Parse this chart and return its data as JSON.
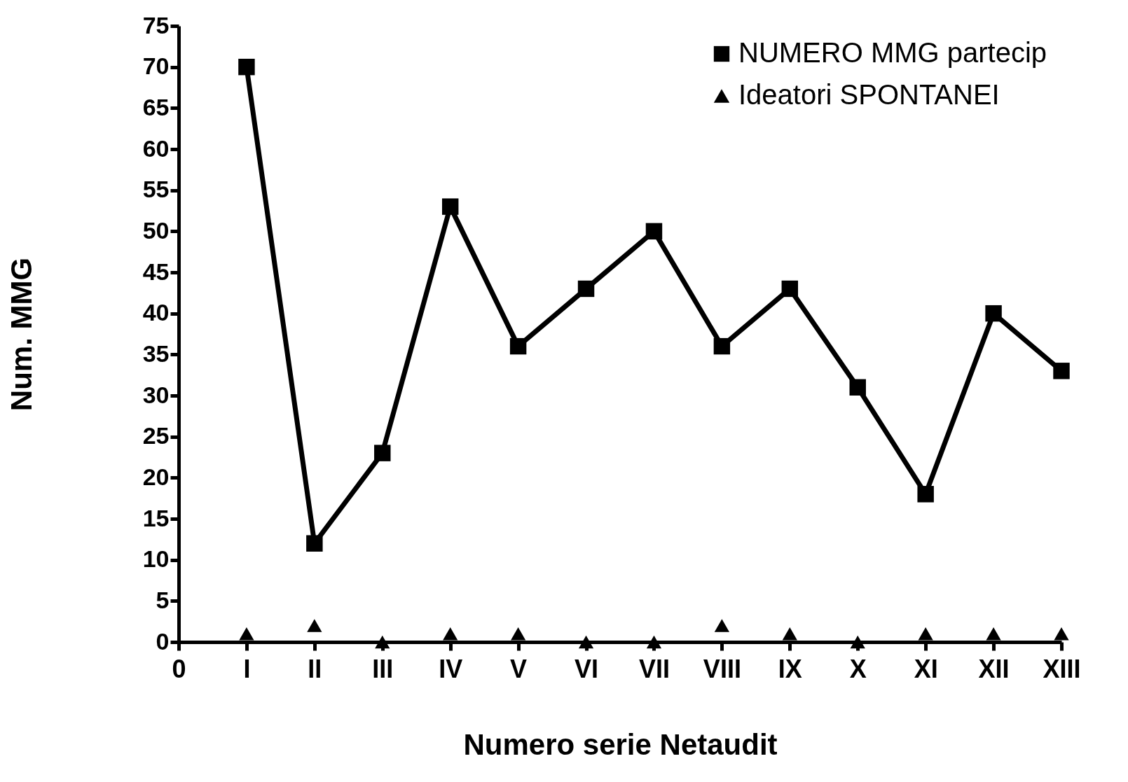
{
  "chart_data": {
    "type": "line",
    "xlabel": "Numero serie Netaudit",
    "ylabel": "Num.  MMG",
    "categories": [
      "0",
      "I",
      "II",
      "III",
      "IV",
      "V",
      "VI",
      "VII",
      "VIII",
      "IX",
      "X",
      "XI",
      "XII",
      "XIII"
    ],
    "series": [
      {
        "name": "NUMERO MMG partecip",
        "color": "#000000",
        "marker": "square",
        "values": [
          null,
          70,
          12,
          23,
          53,
          36,
          43,
          50,
          36,
          43,
          31,
          18,
          40,
          33
        ]
      },
      {
        "name": "Ideatori SPONTANEI",
        "type": "scatter",
        "color": "#000000",
        "marker": "triangle",
        "values": [
          null,
          1,
          2,
          0,
          1,
          1,
          0,
          0,
          2,
          1,
          0,
          1,
          1,
          1
        ]
      }
    ],
    "ylim": [
      0,
      75
    ],
    "yticks": [
      0,
      5,
      10,
      15,
      20,
      25,
      30,
      35,
      40,
      45,
      50,
      55,
      60,
      65,
      70,
      75
    ],
    "legend": "top right"
  }
}
